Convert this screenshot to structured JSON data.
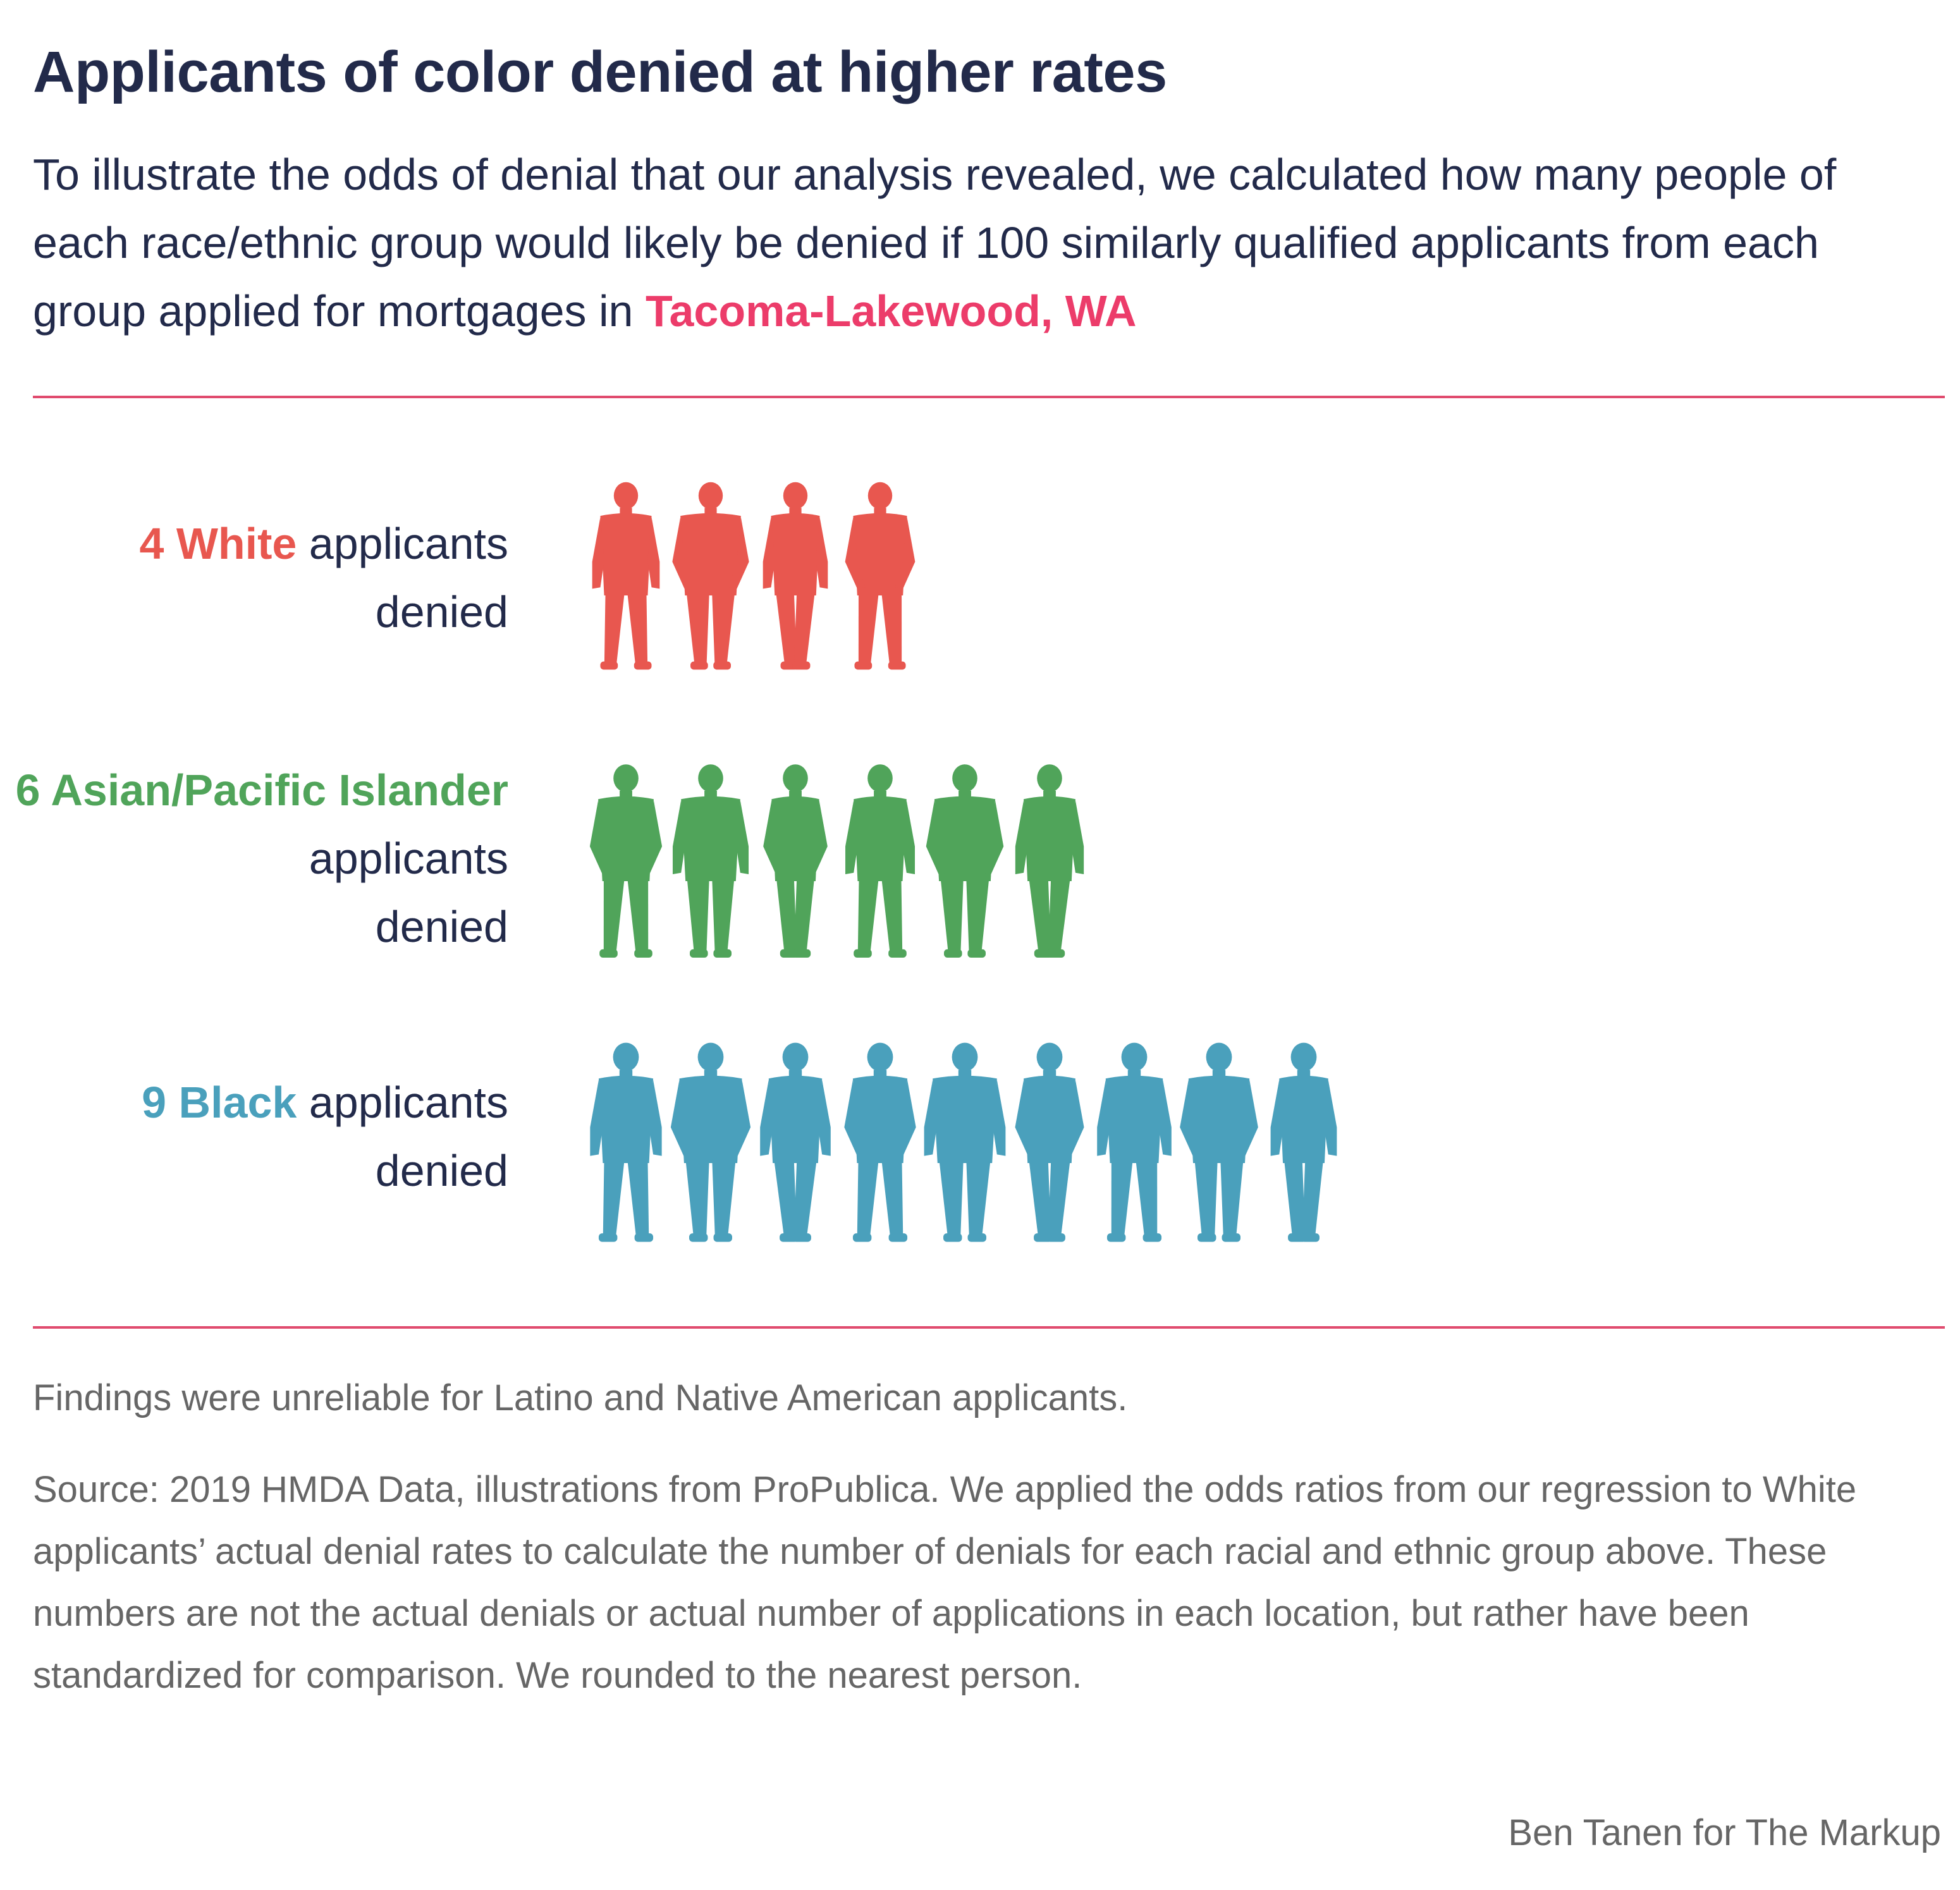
{
  "header": {
    "title": "Applicants of color denied at higher rates",
    "subtitle": "To illustrate the odds of denial that our analysis revealed, we calculated how many people of each race/ethnic group would likely be denied if 100 similarly qualified applicants from each group applied for mortgages in",
    "place": "Tacoma-Lakewood, WA"
  },
  "chart_data": {
    "type": "pictogram",
    "unit": "applicants denied per 100 similarly qualified applicants",
    "series": [
      {
        "name": "White",
        "value": 4,
        "color": "#e8574f",
        "count_label": "4 White",
        "suffix": " applicants",
        "suffix2": "denied"
      },
      {
        "name": "Asian/Pacific Islander",
        "value": 6,
        "color": "#50a45a",
        "count_label": "6 Asian/Pacific Islander",
        "suffix": " applicants",
        "suffix2": "denied"
      },
      {
        "name": "Black",
        "value": 9,
        "color": "#4aa0bc",
        "count_label": "9 Black",
        "suffix": " applicants",
        "suffix2": "denied"
      }
    ]
  },
  "footer": {
    "note": "Findings were unreliable for Latino and Native American applicants.",
    "source": "Source: 2019 HMDA Data, illustrations from ProPublica. We applied the odds ratios from our regression to White applicants’ actual denial rates to calculate the number of denials for each racial and ethnic group above. These numbers are not the actual denials or actual number of applications in each location, but rather have been standardized for comparison. We rounded to the nearest person.",
    "credit": "Ben Tanen for The Markup"
  }
}
